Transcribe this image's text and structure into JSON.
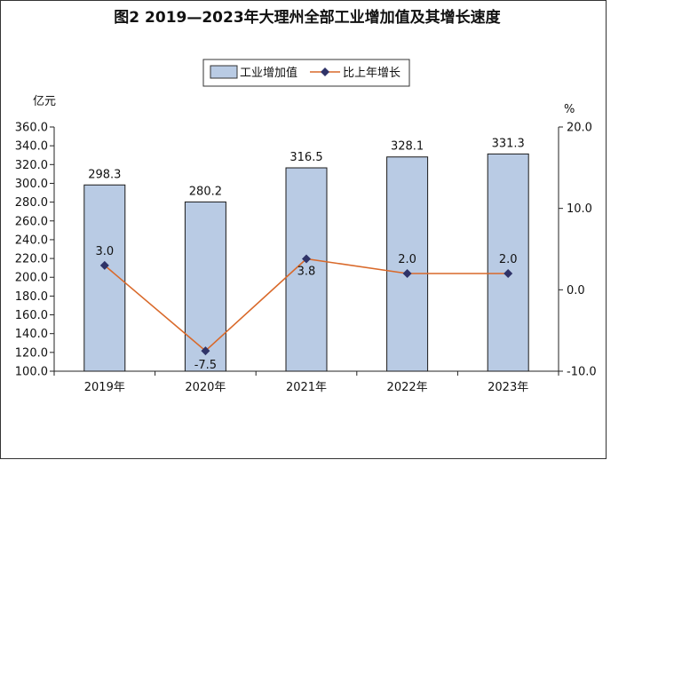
{
  "chart_data": {
    "type": "bar",
    "title": "图2  2019—2023年大理州全部工业增加值及其增长速度",
    "categories": [
      "2019年",
      "2020年",
      "2021年",
      "2022年",
      "2023年"
    ],
    "series": [
      {
        "name": "工业增加值",
        "type": "bar",
        "axis": "left",
        "values": [
          298.3,
          280.2,
          316.5,
          328.1,
          331.3
        ],
        "labels": [
          "298.3",
          "280.2",
          "316.5",
          "328.1",
          "331.3"
        ],
        "color": "#b9cbe4"
      },
      {
        "name": "比上年增长",
        "type": "line",
        "axis": "right",
        "values": [
          3.0,
          -7.5,
          3.8,
          2.0,
          2.0
        ],
        "labels": [
          "3.0",
          "-7.5",
          "3.8",
          "2.0",
          "2.0"
        ],
        "color": "#d9692a",
        "marker_color": "#2f3368"
      }
    ],
    "ylabel_left": "亿元",
    "ylabel_right": "%",
    "ylim_left": [
      100,
      360
    ],
    "ylim_right": [
      -10,
      20
    ],
    "yticks_left": [
      "100.0",
      "120.0",
      "140.0",
      "160.0",
      "180.0",
      "200.0",
      "220.0",
      "240.0",
      "260.0",
      "280.0",
      "300.0",
      "320.0",
      "340.0",
      "360.0"
    ],
    "yticks_right": [
      "-10.0",
      "0.0",
      "10.0",
      "20.0"
    ],
    "grid": false,
    "legend_position": "top-center"
  }
}
